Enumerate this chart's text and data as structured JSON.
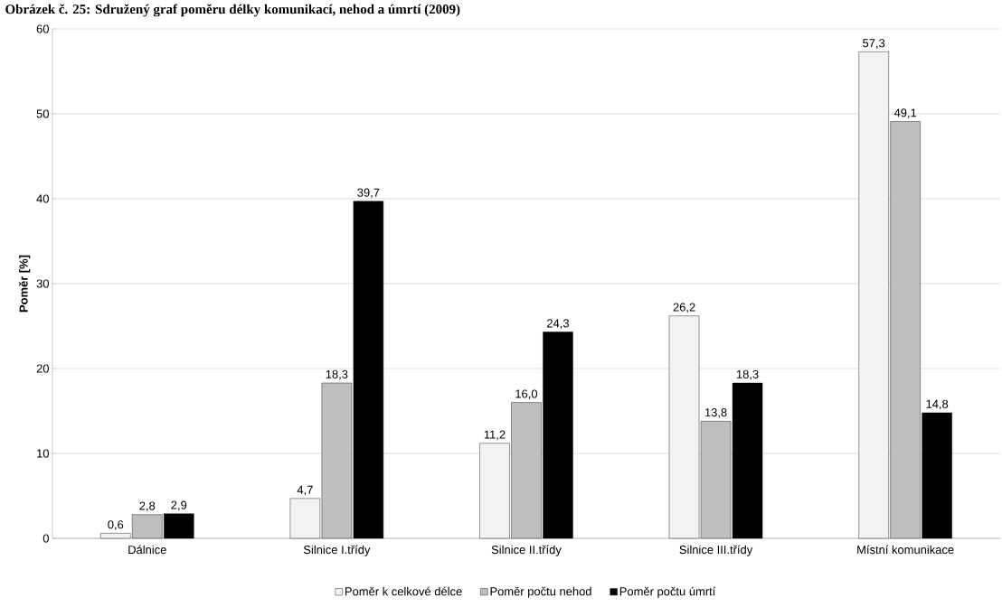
{
  "chart_data": {
    "type": "bar",
    "title": "Obrázek č. 25: Sdružený graf poměru délky komunikací, nehod a úmrtí (2009)",
    "ylabel": "Poměr [%]",
    "categories": [
      "Dálnice",
      "Silnice I.třídy",
      "Silnice II.třídy",
      "Silnice III.třídy",
      "Místní komunikace"
    ],
    "series": [
      {
        "name": "Poměr k celkové délce",
        "color": "#f2f2f2",
        "values": [
          0.6,
          4.7,
          11.2,
          26.2,
          57.3
        ]
      },
      {
        "name": "Poměr počtu nehod",
        "color": "#bfbfbf",
        "values": [
          2.8,
          18.3,
          16.0,
          13.8,
          49.1
        ]
      },
      {
        "name": "Poměr počtu úmrtí",
        "color": "#000000",
        "values": [
          2.9,
          39.7,
          24.3,
          18.3,
          14.8
        ]
      }
    ],
    "value_labels": [
      [
        "0,6",
        "4,7",
        "11,2",
        "26,2",
        "57,3"
      ],
      [
        "2,8",
        "18,3",
        "16,0",
        "13,8",
        "49,1"
      ],
      [
        "2,9",
        "39,7",
        "24,3",
        "18,3",
        "14,8"
      ]
    ],
    "ylim": [
      0,
      60
    ],
    "yticks": [
      0,
      10,
      20,
      30,
      40,
      50,
      60
    ],
    "grid": "y",
    "legend": "bottom"
  }
}
